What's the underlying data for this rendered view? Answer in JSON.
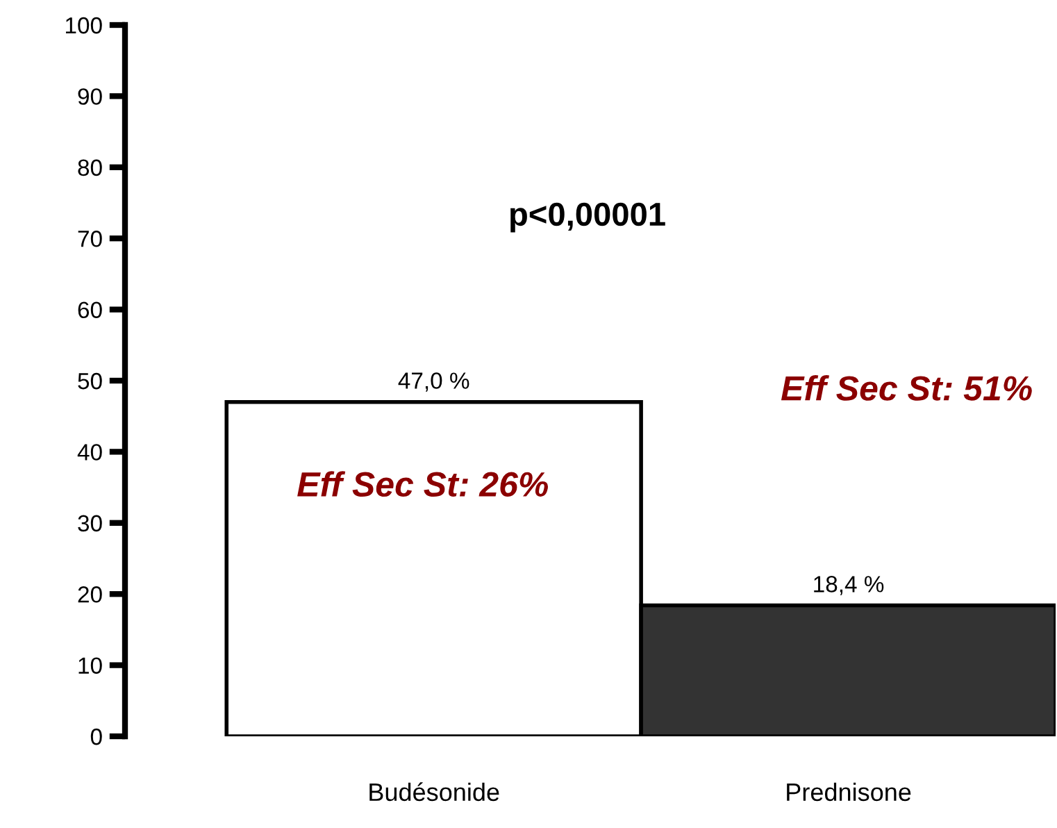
{
  "chart_data": {
    "type": "bar",
    "categories": [
      "Budésonide",
      "Prednisone"
    ],
    "values": [
      47.0,
      18.4
    ],
    "colors": [
      "#ffffff",
      "#333333"
    ],
    "value_labels": [
      "47,0 %",
      "18,4 %"
    ],
    "ylim": [
      0,
      100
    ],
    "yticks": [
      0,
      10,
      20,
      30,
      40,
      50,
      60,
      70,
      80,
      90,
      100
    ],
    "grid": false,
    "annotations": [
      "p<0,00001",
      "Eff Sec St: 26%",
      "Eff Sec St: 51%"
    ]
  }
}
